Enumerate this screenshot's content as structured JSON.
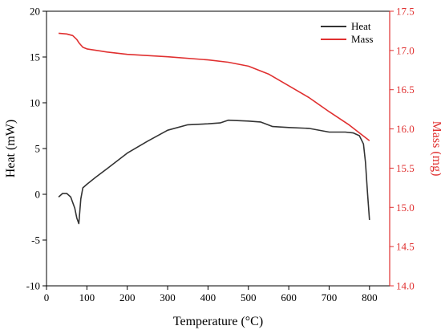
{
  "chart_data": {
    "type": "line",
    "xlabel": "Temperature (°C)",
    "ylabel": "Heat (mW)",
    "y2label": "Mass (mg)",
    "xlim": [
      0,
      850
    ],
    "ylim": [
      -10,
      20
    ],
    "y2lim": [
      14.0,
      17.5
    ],
    "xticks": [
      0,
      100,
      200,
      300,
      400,
      500,
      600,
      700,
      800
    ],
    "yticks": [
      -10,
      -5,
      0,
      5,
      10,
      15,
      20
    ],
    "y2ticks": [
      14.0,
      14.5,
      15.0,
      15.5,
      16.0,
      16.5,
      17.0,
      17.5
    ],
    "grid": false,
    "legend": "top-right",
    "colors": {
      "heat": "#333333",
      "mass": "#e03030",
      "axis_left": "#000000",
      "axis_right": "#e03030"
    },
    "series": [
      {
        "name": "Heat",
        "axis": "left",
        "x": [
          30,
          40,
          50,
          60,
          70,
          75,
          80,
          85,
          90,
          100,
          120,
          150,
          200,
          250,
          300,
          350,
          400,
          430,
          450,
          500,
          530,
          560,
          600,
          650,
          700,
          740,
          760,
          775,
          785,
          790,
          795,
          800
        ],
        "y": [
          -0.3,
          0.1,
          0.1,
          -0.3,
          -1.5,
          -2.6,
          -3.2,
          -0.5,
          0.7,
          1.1,
          1.8,
          2.8,
          4.5,
          5.8,
          7.0,
          7.6,
          7.7,
          7.8,
          8.1,
          8.0,
          7.9,
          7.4,
          7.3,
          7.2,
          6.8,
          6.8,
          6.7,
          6.4,
          5.5,
          3.5,
          0.2,
          -2.8
        ]
      },
      {
        "name": "Mass",
        "axis": "right",
        "x": [
          30,
          50,
          65,
          75,
          80,
          90,
          100,
          150,
          200,
          300,
          400,
          450,
          500,
          550,
          600,
          650,
          700,
          750,
          800
        ],
        "y": [
          17.22,
          17.21,
          17.19,
          17.14,
          17.1,
          17.04,
          17.02,
          16.98,
          16.95,
          16.92,
          16.88,
          16.85,
          16.8,
          16.7,
          16.55,
          16.4,
          16.22,
          16.05,
          15.85
        ]
      }
    ]
  }
}
